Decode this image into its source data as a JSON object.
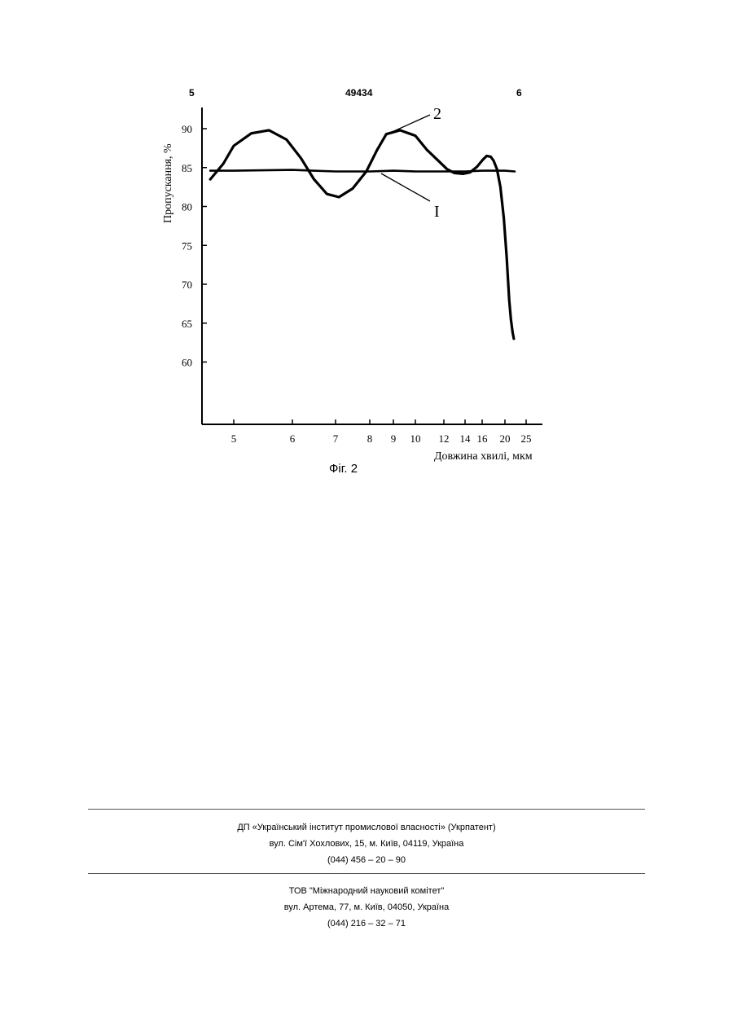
{
  "header": {
    "left_page": "5",
    "patent_number": "49434",
    "right_page": "6"
  },
  "chart_data": {
    "type": "line",
    "ylabel": "Пропускання, %",
    "xlabel": "Довжина хвилі, мкм",
    "x_ticks": [
      "5",
      "6",
      "7",
      "8",
      "9",
      "10",
      "12",
      "14",
      "16",
      "20",
      "25"
    ],
    "y_ticks": [
      "90",
      "85",
      "80",
      "75",
      "70",
      "65",
      "60"
    ],
    "ylim": [
      52,
      93
    ],
    "grid": false,
    "legend": "callout labels",
    "series": [
      {
        "name": "2",
        "x": [
          4.55,
          4.8,
          5.0,
          5.3,
          5.6,
          5.9,
          6.2,
          6.5,
          6.8,
          7.1,
          7.5,
          7.9,
          8.3,
          8.7,
          9.3,
          10.0,
          10.8,
          11.6,
          12.3,
          13.0,
          13.8,
          14.6,
          15.4,
          16.1,
          16.8,
          17.5,
          18.0,
          18.6,
          19.2,
          19.8,
          20.4,
          21.0,
          21.4,
          21.8,
          22.1
        ],
        "values": [
          83.5,
          85.5,
          87.8,
          89.4,
          89.8,
          88.6,
          86.2,
          83.5,
          81.6,
          81.2,
          82.3,
          84.5,
          87.2,
          89.3,
          89.8,
          89.1,
          87.3,
          85.9,
          84.8,
          84.3,
          84.2,
          84.4,
          85.1,
          86.0,
          86.5,
          86.4,
          85.9,
          84.8,
          82.5,
          78.5,
          73.5,
          68.0,
          65.5,
          63.8,
          63.0
        ]
      },
      {
        "name": "I",
        "x": [
          4.55,
          5.0,
          6.0,
          7.0,
          8.0,
          9.0,
          10.0,
          12.0,
          14.0,
          16.0,
          20.0,
          22.3
        ],
        "values": [
          84.6,
          84.6,
          84.7,
          84.5,
          84.5,
          84.6,
          84.5,
          84.5,
          84.5,
          84.6,
          84.6,
          84.5
        ]
      }
    ],
    "labels": {
      "curve_2": "2",
      "curve_1": "I"
    }
  },
  "figure_caption": "Фіг. 2",
  "footer": {
    "org1": {
      "name": "ДП «Український інститут промислової власності» (Укрпатент)",
      "address": "вул. Сім'ї Хохлових, 15, м. Київ, 04119, Україна",
      "phone": "(044) 456 – 20 – 90"
    },
    "org2": {
      "name": "ТОВ \"Міжнародний науковий комітет\"",
      "address": "вул. Артема, 77, м. Київ, 04050, Україна",
      "phone": "(044) 216 – 32 – 71"
    }
  }
}
